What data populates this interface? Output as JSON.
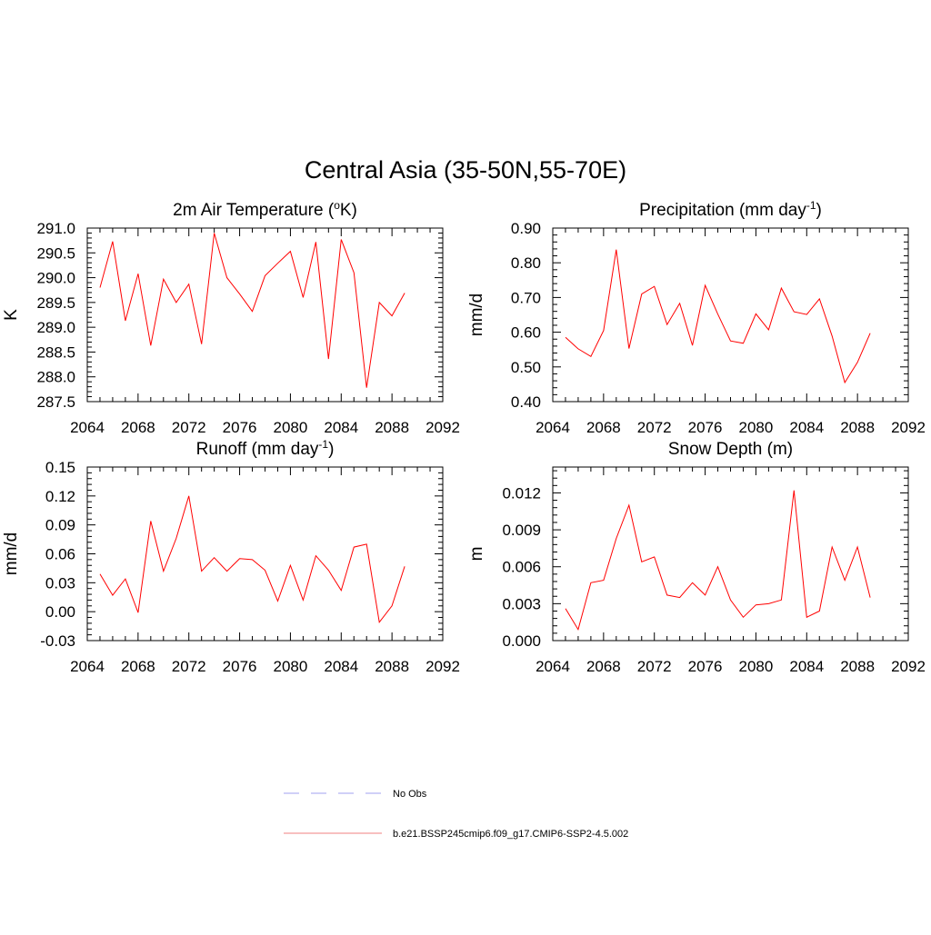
{
  "figure": {
    "title": "Central Asia (35-50N,55-70E)"
  },
  "legend": {
    "entries": [
      {
        "label": "No Obs",
        "color": "#a0a0f0",
        "style": "dashed"
      },
      {
        "label": "b.e21.BSSP245cmip6.f09_g17.CMIP6-SSP2-4.5.002",
        "color": "#f08080",
        "style": "solid"
      }
    ]
  },
  "chart_data": [
    {
      "type": "line",
      "title": "2m Air Temperature (",
      "title_sup": "o",
      "title_tail": "K)",
      "ylabel": "K",
      "xlim": [
        2064,
        2092
      ],
      "ylim": [
        287.5,
        291.0
      ],
      "xticks": [
        2064,
        2068,
        2072,
        2076,
        2080,
        2084,
        2088,
        2092
      ],
      "yticks": [
        287.5,
        288.0,
        288.5,
        289.0,
        289.5,
        290.0,
        290.5,
        291.0
      ],
      "ytick_labels": [
        "287.5",
        "288.0",
        "288.5",
        "289.0",
        "289.5",
        "290.0",
        "290.5",
        "291.0"
      ],
      "color": "#ff0000",
      "series": [
        {
          "x": [
            2065,
            2066,
            2067,
            2068,
            2069,
            2070,
            2071,
            2072,
            2073,
            2074,
            2075,
            2076,
            2077,
            2078,
            2079,
            2080,
            2081,
            2082,
            2083,
            2084,
            2085,
            2086,
            2087,
            2088,
            2089
          ],
          "values": [
            289.8,
            290.73,
            289.13,
            290.08,
            288.63,
            289.97,
            289.5,
            289.87,
            288.66,
            290.9,
            290.0,
            289.67,
            289.32,
            290.04,
            290.29,
            290.53,
            289.6,
            290.72,
            288.36,
            290.77,
            290.1,
            287.78,
            289.5,
            289.23,
            289.69
          ]
        }
      ]
    },
    {
      "type": "line",
      "title": "Precipitation (mm day",
      "title_sup": "-1",
      "title_tail": ")",
      "ylabel": "mm/d",
      "xlim": [
        2064,
        2092
      ],
      "ylim": [
        0.4,
        0.9
      ],
      "xticks": [
        2064,
        2068,
        2072,
        2076,
        2080,
        2084,
        2088,
        2092
      ],
      "yticks": [
        0.4,
        0.5,
        0.6,
        0.7,
        0.8,
        0.9
      ],
      "ytick_labels": [
        "0.40",
        "0.50",
        "0.60",
        "0.70",
        "0.80",
        "0.90"
      ],
      "color": "#ff0000",
      "series": [
        {
          "x": [
            2065,
            2066,
            2067,
            2068,
            2069,
            2070,
            2071,
            2072,
            2073,
            2074,
            2075,
            2076,
            2077,
            2078,
            2079,
            2080,
            2081,
            2082,
            2083,
            2084,
            2085,
            2086,
            2087,
            2088,
            2089
          ],
          "values": [
            0.585,
            0.552,
            0.53,
            0.605,
            0.838,
            0.553,
            0.71,
            0.732,
            0.622,
            0.683,
            0.562,
            0.735,
            0.652,
            0.575,
            0.568,
            0.653,
            0.607,
            0.727,
            0.659,
            0.651,
            0.696,
            0.589,
            0.455,
            0.513,
            0.597
          ]
        }
      ]
    },
    {
      "type": "line",
      "title": "Runoff (mm day",
      "title_sup": "-1",
      "title_tail": ")",
      "ylabel": "mm/d",
      "xlim": [
        2064,
        2092
      ],
      "ylim": [
        -0.03,
        0.15
      ],
      "xticks": [
        2064,
        2068,
        2072,
        2076,
        2080,
        2084,
        2088,
        2092
      ],
      "yticks": [
        -0.03,
        0.0,
        0.03,
        0.06,
        0.09,
        0.12,
        0.15
      ],
      "ytick_labels": [
        "-0.03",
        "0.00",
        "0.03",
        "0.06",
        "0.09",
        "0.12",
        "0.15"
      ],
      "color": "#ff0000",
      "series": [
        {
          "x": [
            2065,
            2066,
            2067,
            2068,
            2069,
            2070,
            2071,
            2072,
            2073,
            2074,
            2075,
            2076,
            2077,
            2078,
            2079,
            2080,
            2081,
            2082,
            2083,
            2084,
            2085,
            2086,
            2087,
            2088,
            2089
          ],
          "values": [
            0.039,
            0.017,
            0.034,
            -0.001,
            0.094,
            0.042,
            0.076,
            0.12,
            0.042,
            0.056,
            0.042,
            0.055,
            0.054,
            0.043,
            0.011,
            0.048,
            0.012,
            0.058,
            0.043,
            0.022,
            0.067,
            0.07,
            -0.011,
            0.006,
            0.047
          ]
        }
      ]
    },
    {
      "type": "line",
      "title": "Snow Depth (m)",
      "title_sup": "",
      "title_tail": "",
      "ylabel": "m",
      "xlim": [
        2064,
        2092
      ],
      "ylim": [
        0.0,
        0.0141
      ],
      "xticks": [
        2064,
        2068,
        2072,
        2076,
        2080,
        2084,
        2088,
        2092
      ],
      "yticks": [
        0.0,
        0.003,
        0.006,
        0.009,
        0.012
      ],
      "ytick_labels": [
        "0.000",
        "0.003",
        "0.006",
        "0.009",
        "0.012"
      ],
      "color": "#ff0000",
      "series": [
        {
          "x": [
            2065,
            2066,
            2067,
            2068,
            2069,
            2070,
            2071,
            2072,
            2073,
            2074,
            2075,
            2076,
            2077,
            2078,
            2079,
            2080,
            2081,
            2082,
            2083,
            2084,
            2085,
            2086,
            2087,
            2088,
            2089
          ],
          "values": [
            0.0026,
            0.0009,
            0.0047,
            0.0049,
            0.0083,
            0.011,
            0.0064,
            0.0068,
            0.0037,
            0.0035,
            0.0047,
            0.0037,
            0.006,
            0.0033,
            0.0019,
            0.0029,
            0.003,
            0.0033,
            0.0122,
            0.0019,
            0.0024,
            0.0076,
            0.0049,
            0.0076,
            0.0035
          ]
        }
      ]
    }
  ]
}
